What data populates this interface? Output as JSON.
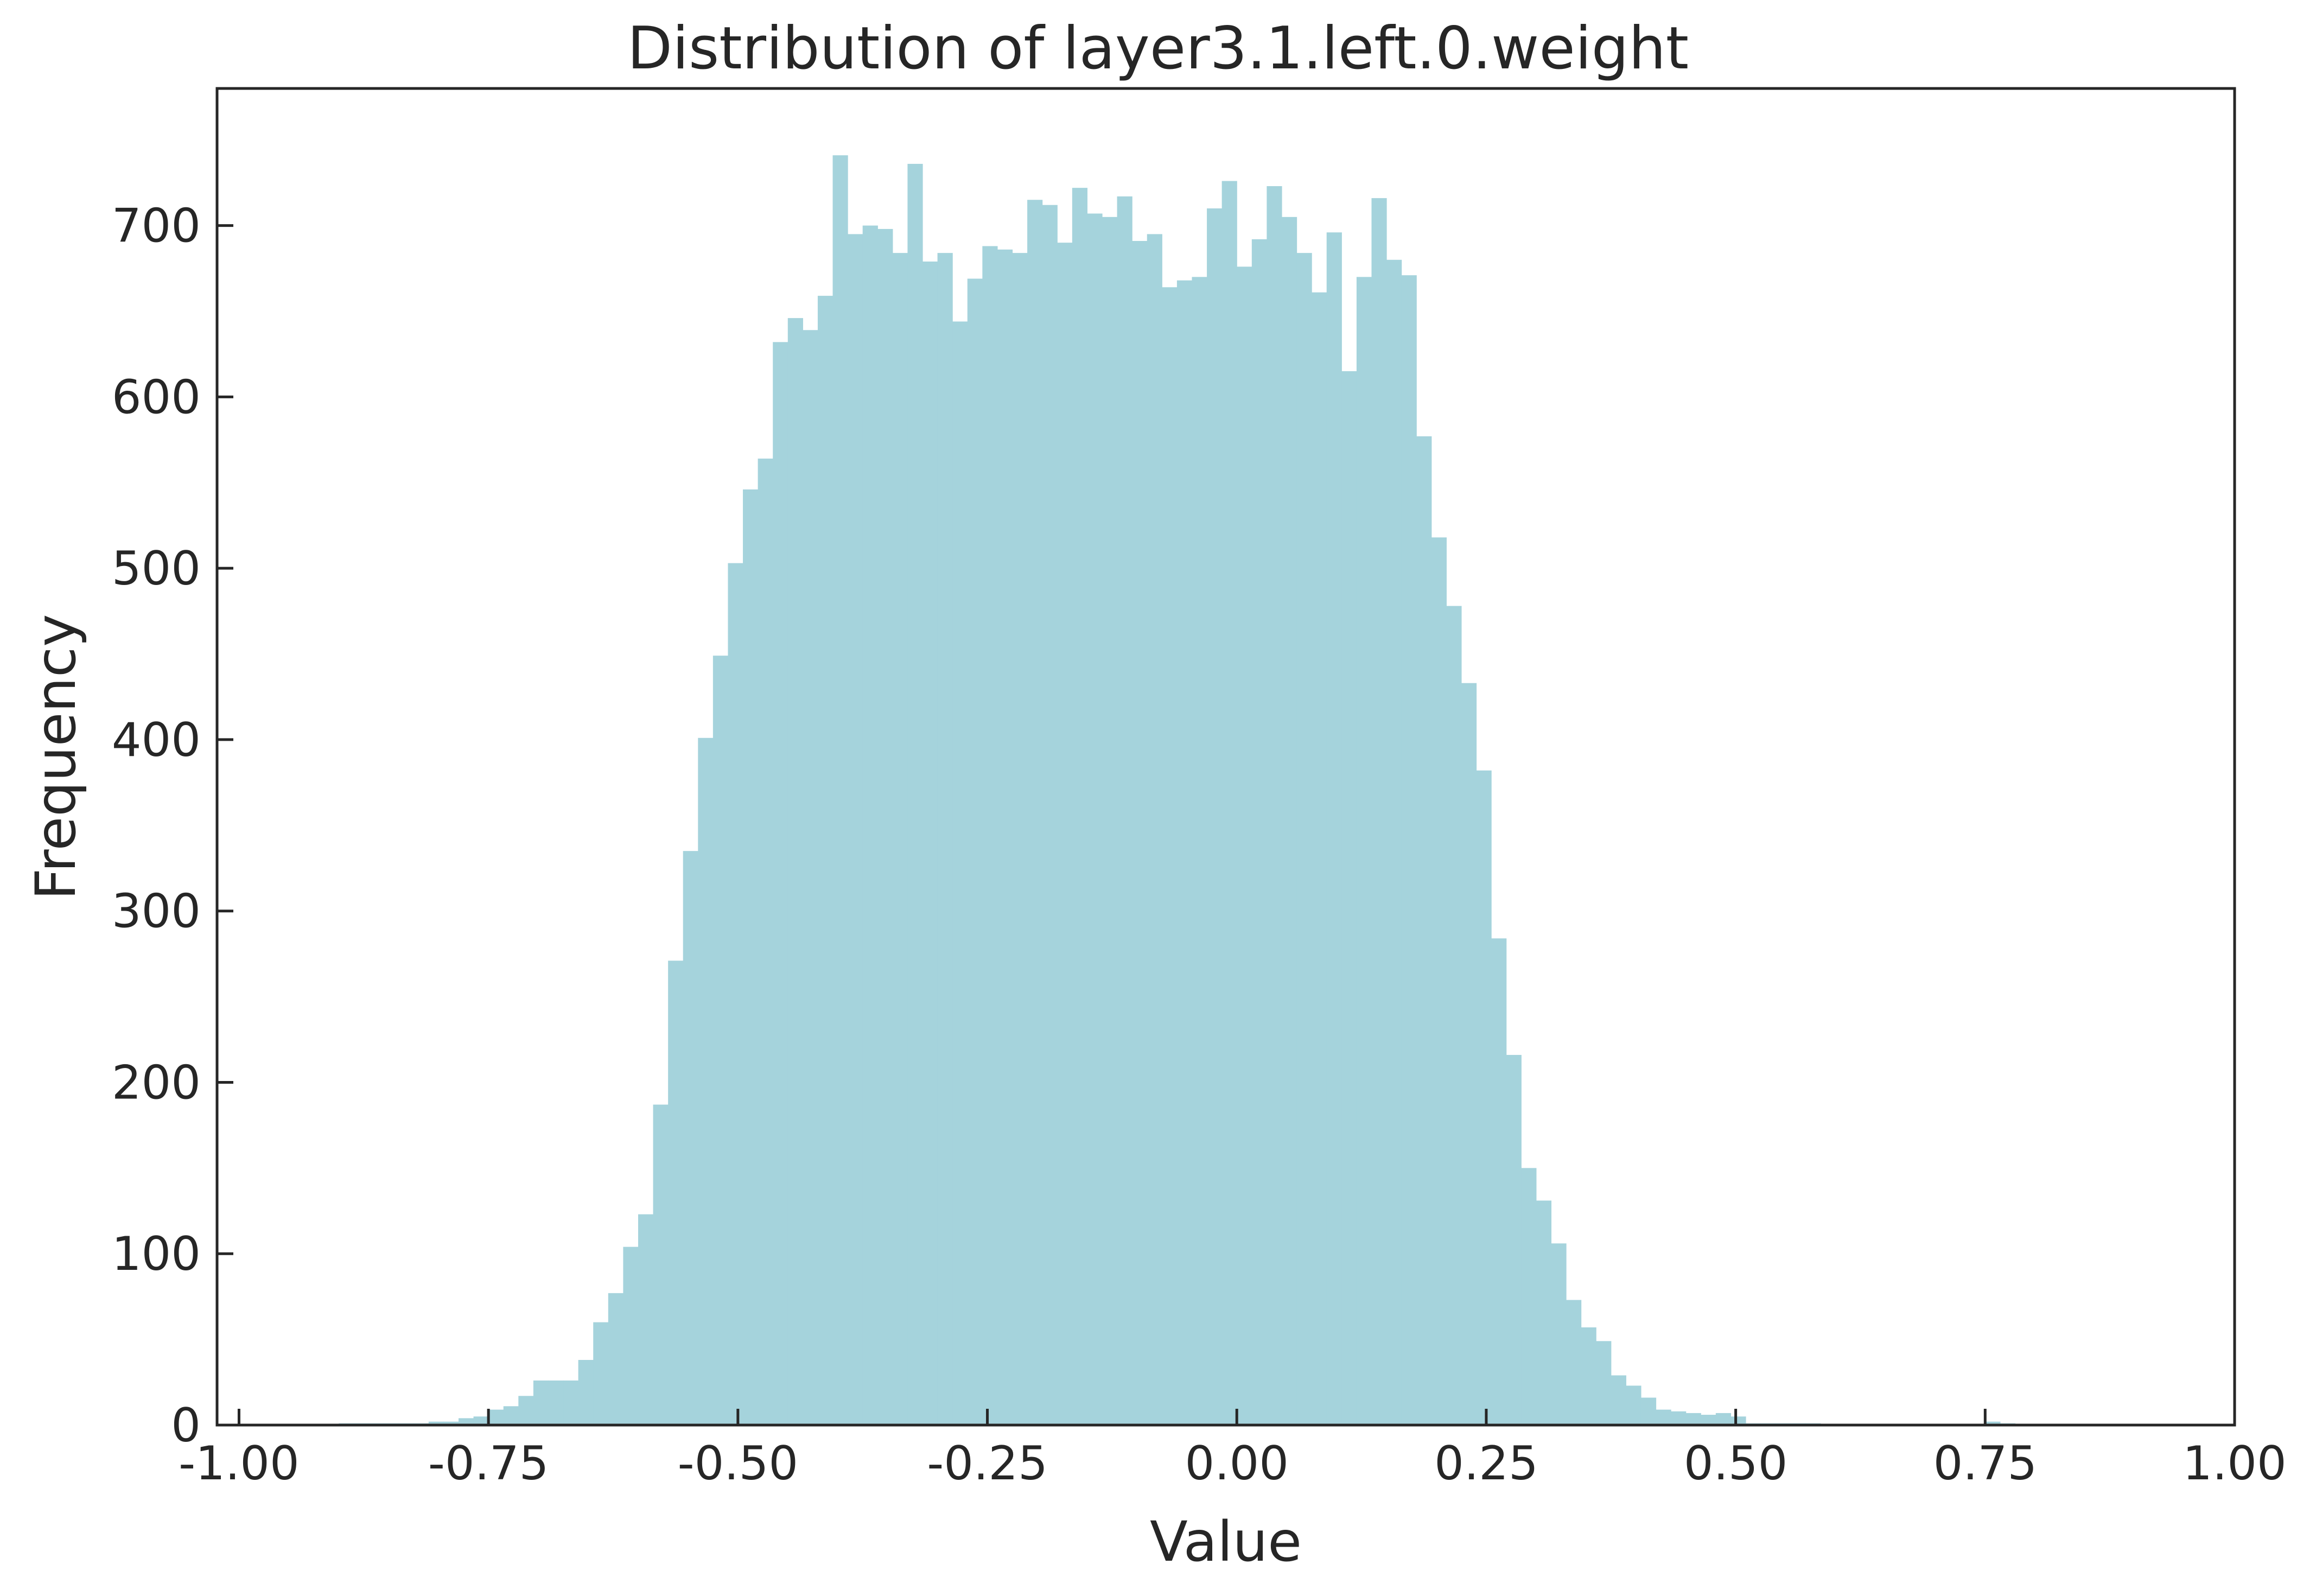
{
  "chart_data": {
    "type": "bar",
    "title": "Distribution of layer3.1.left.0.weight",
    "xlabel": "Value",
    "ylabel": "Frequency",
    "xlim": [
      -1.022,
      1.0
    ],
    "ylim": [
      0,
      780
    ],
    "x_ticks": [
      "-1.00",
      "-0.75",
      "-0.50",
      "-0.25",
      "0.00",
      "0.25",
      "0.50",
      "0.75",
      "1.00"
    ],
    "y_ticks": [
      "0",
      "100",
      "200",
      "300",
      "400",
      "500",
      "600",
      "700"
    ],
    "grid": false,
    "bar_color": "#a5d3dc",
    "bin_start": -0.9,
    "bin_width": 0.015,
    "values": [
      1,
      1,
      1,
      1,
      1,
      1,
      2,
      2,
      4,
      5,
      9,
      11,
      17,
      26,
      26,
      26,
      38,
      60,
      77,
      104,
      123,
      187,
      271,
      335,
      401,
      449,
      503,
      546,
      564,
      632,
      646,
      639,
      659,
      741,
      695,
      700,
      698,
      684,
      736,
      679,
      684,
      644,
      669,
      688,
      686,
      684,
      715,
      712,
      690,
      722,
      707,
      705,
      717,
      691,
      695,
      664,
      668,
      670,
      710,
      726,
      676,
      692,
      723,
      705,
      684,
      661,
      696,
      615,
      670,
      716,
      680,
      671,
      577,
      518,
      478,
      433,
      382,
      284,
      216,
      150,
      131,
      106,
      73,
      57,
      49,
      29,
      23,
      16,
      9,
      8,
      7,
      6,
      7,
      5,
      1,
      1,
      1,
      1,
      1,
      0,
      0,
      0,
      0,
      0,
      0,
      0,
      0,
      0,
      0,
      0,
      2,
      1
    ],
    "spacer": ""
  }
}
